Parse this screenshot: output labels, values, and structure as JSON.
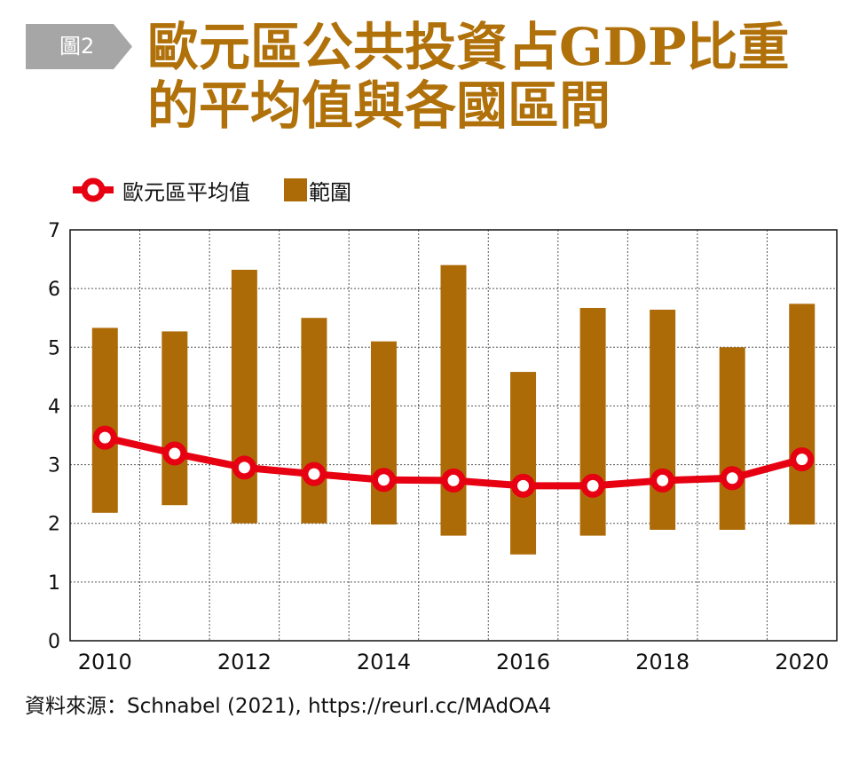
{
  "badge": {
    "label": "圖2",
    "color": "#a6a6a6"
  },
  "title": {
    "line1": "歐元區公共投資占GDP比重",
    "line2": "的平均值與各國區間",
    "color": "#b0710a"
  },
  "legend": {
    "average_label": "歐元區平均值",
    "range_label": "範圍"
  },
  "source": "資料來源：Schnabel (2021), https://reurl.cc/MAdOA4",
  "colors": {
    "range": "#ad6b08",
    "average": "#e60012",
    "grid": "#555555",
    "axis": "#111111"
  },
  "chart_data": {
    "type": "bar",
    "subtype": "floating-range-bar-with-line",
    "title": "歐元區公共投資占GDP比重的平均值與各國區間",
    "xlabel": "",
    "ylabel": "",
    "ylim": [
      0,
      7
    ],
    "yticks": [
      0,
      1,
      2,
      3,
      4,
      5,
      6,
      7
    ],
    "categories": [
      "2010",
      "2011",
      "2012",
      "2013",
      "2014",
      "2015",
      "2016",
      "2017",
      "2018",
      "2019",
      "2020"
    ],
    "xtick_labels": [
      "2010",
      "2012",
      "2014",
      "2016",
      "2018",
      "2020"
    ],
    "grid": true,
    "legend_position": "top-left",
    "series": [
      {
        "name": "範圍",
        "type": "range-bar",
        "low": [
          2.18,
          2.31,
          2.0,
          2.0,
          1.98,
          1.79,
          1.47,
          1.79,
          1.89,
          1.89,
          1.98
        ],
        "high": [
          5.33,
          5.27,
          6.32,
          5.5,
          5.1,
          6.4,
          4.58,
          5.67,
          5.64,
          5.0,
          5.74
        ]
      },
      {
        "name": "歐元區平均值",
        "type": "line",
        "values": [
          3.46,
          3.19,
          2.95,
          2.84,
          2.74,
          2.73,
          2.64,
          2.64,
          2.73,
          2.77,
          3.09
        ]
      }
    ]
  }
}
